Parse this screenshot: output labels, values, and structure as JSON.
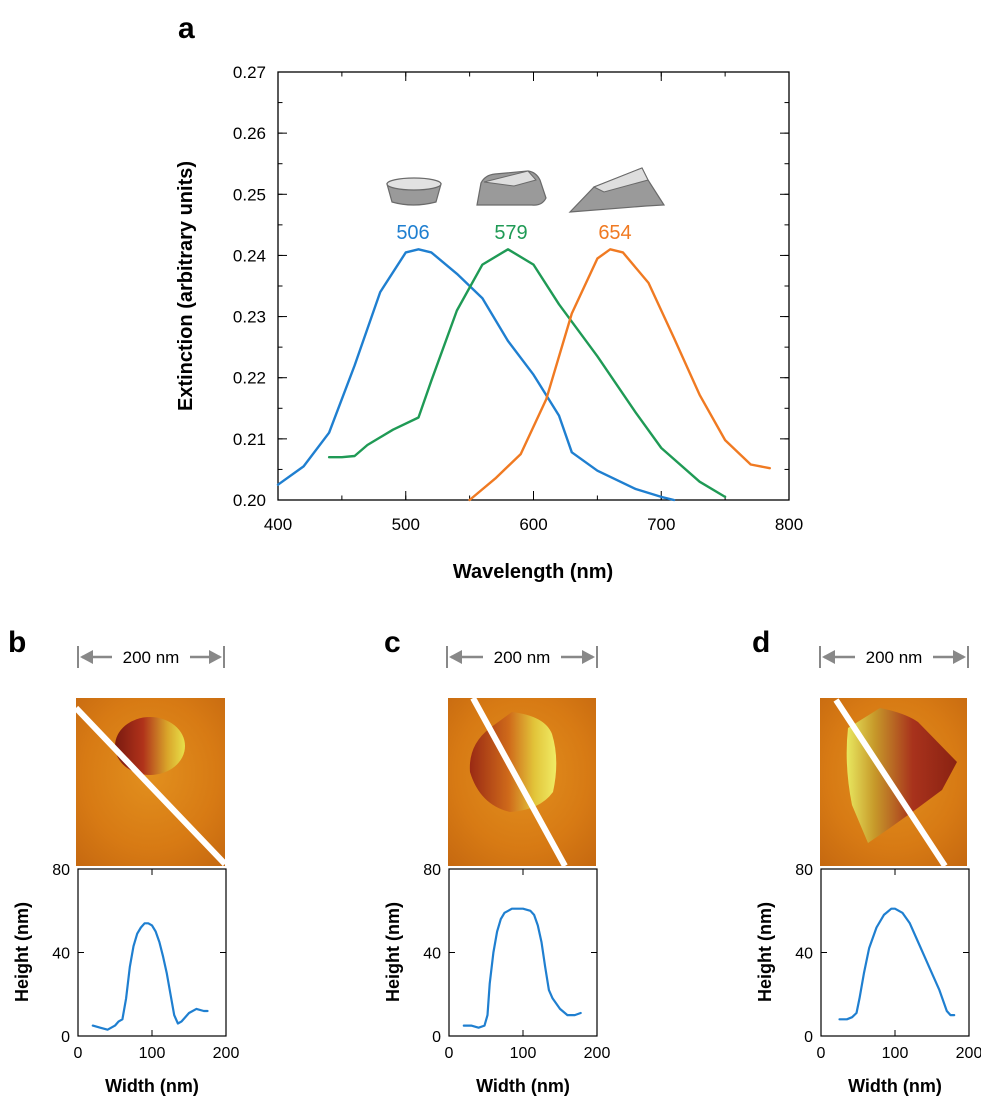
{
  "panels": {
    "a": "a",
    "b": "b",
    "c": "c",
    "d": "d"
  },
  "scale_bar_label": "200 nm",
  "chart_data": [
    {
      "type": "line",
      "panel": "a",
      "xlabel": "Wavelength (nm)",
      "ylabel": "Extinction (arbitrary units)",
      "xlim": [
        400,
        800
      ],
      "ylim": [
        0.2,
        0.27
      ],
      "xticks": [
        400,
        500,
        600,
        700,
        800
      ],
      "yticks": [
        0.2,
        0.21,
        0.22,
        0.23,
        0.24,
        0.25,
        0.26,
        0.27
      ],
      "grid": false,
      "annotations": [
        {
          "text": "506",
          "color": "#1f7fd0"
        },
        {
          "text": "579",
          "color": "#1f9a55"
        },
        {
          "text": "654",
          "color": "#f07a22"
        }
      ],
      "series": [
        {
          "color": "#1f7fd0",
          "x": [
            400,
            420,
            440,
            460,
            480,
            500,
            510,
            520,
            540,
            560,
            580,
            600,
            620,
            630,
            650,
            680,
            700,
            710
          ],
          "y": [
            0.2025,
            0.2055,
            0.211,
            0.222,
            0.234,
            0.2405,
            0.241,
            0.2405,
            0.237,
            0.233,
            0.226,
            0.2205,
            0.2138,
            0.2078,
            0.2048,
            0.2018,
            0.2005,
            0.2
          ]
        },
        {
          "color": "#1f9a55",
          "x": [
            440,
            450,
            460,
            470,
            490,
            510,
            520,
            540,
            560,
            580,
            600,
            620,
            650,
            680,
            700,
            730,
            750
          ],
          "y": [
            0.207,
            0.207,
            0.2072,
            0.209,
            0.2115,
            0.2135,
            0.2195,
            0.231,
            0.2385,
            0.241,
            0.2385,
            0.232,
            0.2235,
            0.2143,
            0.2085,
            0.203,
            0.2005
          ]
        },
        {
          "color": "#f07a22",
          "x": [
            550,
            570,
            590,
            610,
            630,
            650,
            660,
            670,
            690,
            710,
            730,
            750,
            770,
            785
          ],
          "y": [
            0.2,
            0.2035,
            0.2075,
            0.2165,
            0.2305,
            0.2395,
            0.241,
            0.2405,
            0.2355,
            0.2265,
            0.2172,
            0.2098,
            0.2058,
            0.2052
          ]
        }
      ]
    },
    {
      "type": "line",
      "panel": "b",
      "xlabel": "Width (nm)",
      "ylabel": "Height (nm)",
      "xlim": [
        0,
        200
      ],
      "ylim": [
        0,
        80
      ],
      "xticks": [
        0,
        100,
        200
      ],
      "yticks": [
        0,
        40,
        80
      ],
      "series": [
        {
          "color": "#1f7fd0",
          "x": [
            20,
            30,
            40,
            50,
            55,
            60,
            65,
            70,
            75,
            80,
            85,
            90,
            95,
            100,
            105,
            110,
            115,
            120,
            125,
            130,
            135,
            140,
            150,
            160,
            170,
            175
          ],
          "y": [
            5,
            4,
            3,
            5,
            7,
            8,
            18,
            33,
            43,
            49,
            52,
            54,
            54,
            53,
            50,
            45,
            38,
            30,
            20,
            10,
            6,
            7,
            11,
            13,
            12,
            12
          ]
        }
      ]
    },
    {
      "type": "line",
      "panel": "c",
      "xlabel": "Width (nm)",
      "ylabel": "Height (nm)",
      "xlim": [
        0,
        200
      ],
      "ylim": [
        0,
        80
      ],
      "xticks": [
        0,
        100,
        200
      ],
      "yticks": [
        0,
        40,
        80
      ],
      "series": [
        {
          "color": "#1f7fd0",
          "x": [
            20,
            30,
            40,
            48,
            52,
            55,
            60,
            65,
            70,
            75,
            80,
            85,
            90,
            100,
            110,
            115,
            120,
            125,
            130,
            135,
            140,
            150,
            160,
            170,
            178
          ],
          "y": [
            5,
            5,
            4,
            5,
            10,
            25,
            40,
            50,
            56,
            59,
            60,
            61,
            61,
            61,
            60,
            58,
            53,
            45,
            33,
            22,
            18,
            13,
            10,
            10,
            11
          ]
        }
      ]
    },
    {
      "type": "line",
      "panel": "d",
      "xlabel": "Width (nm)",
      "ylabel": "Height (nm)",
      "xlim": [
        0,
        200
      ],
      "ylim": [
        0,
        80
      ],
      "xticks": [
        0,
        100,
        200
      ],
      "yticks": [
        0,
        40,
        80
      ],
      "series": [
        {
          "color": "#1f7fd0",
          "x": [
            25,
            35,
            42,
            48,
            52,
            58,
            65,
            75,
            85,
            95,
            100,
            110,
            120,
            130,
            140,
            150,
            160,
            170,
            175,
            180
          ],
          "y": [
            8,
            8,
            9,
            11,
            18,
            30,
            42,
            52,
            58,
            61,
            61,
            59,
            54,
            46,
            38,
            30,
            22,
            12,
            10,
            10
          ]
        }
      ]
    }
  ]
}
